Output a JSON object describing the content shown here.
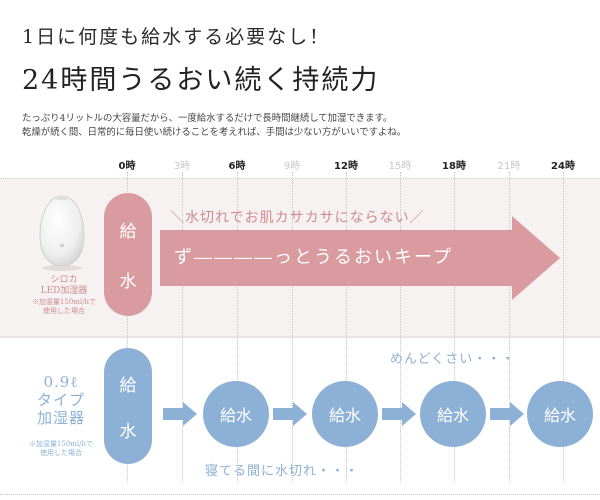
{
  "heading": {
    "line1": "1日に何度も給水する必要なし！",
    "line2": "24時間うるおい続く持続力"
  },
  "description": {
    "line1": "たっぷり4リットルの大容量だから、一度給水するだけで長時間継続して加湿できます。",
    "line2": "乾燥が続く間、日常的に毎日使い続けることを考えれば、手間は少ない方がいいですよね。"
  },
  "timeline": {
    "ticks": [
      {
        "label": "0時",
        "major": true
      },
      {
        "label": "3時",
        "major": false
      },
      {
        "label": "6時",
        "major": true
      },
      {
        "label": "9時",
        "major": false
      },
      {
        "label": "12時",
        "major": true
      },
      {
        "label": "15時",
        "major": false
      },
      {
        "label": "18時",
        "major": true
      },
      {
        "label": "21時",
        "major": false
      },
      {
        "label": "24時",
        "major": true
      }
    ]
  },
  "shiroka": {
    "product_line1": "シロカ",
    "product_line2": "LED加湿器",
    "note_line1": "※加湿量150ml/hで",
    "note_line2": "使用した場合",
    "pill_char1": "給",
    "pill_char2": "水",
    "arrow_label": "＼水切れでお肌カサカサにならない／",
    "arrow_text": "ず――――っとうるおいキープ",
    "color": "#d99b9f"
  },
  "small_tank": {
    "product_line1": "0.9ℓ",
    "product_line2": "タイプ",
    "product_line3": "加湿器",
    "note_line1": "※加湿量150ml/hで",
    "note_line2": "使用した場合",
    "pill_char1": "給",
    "pill_char2": "水",
    "refills": [
      "給水",
      "給水",
      "給水",
      "給水"
    ],
    "caption_top": "めんどくさい・・・",
    "caption_bottom": "寝てる間に水切れ・・・",
    "color": "#8db1d6"
  }
}
